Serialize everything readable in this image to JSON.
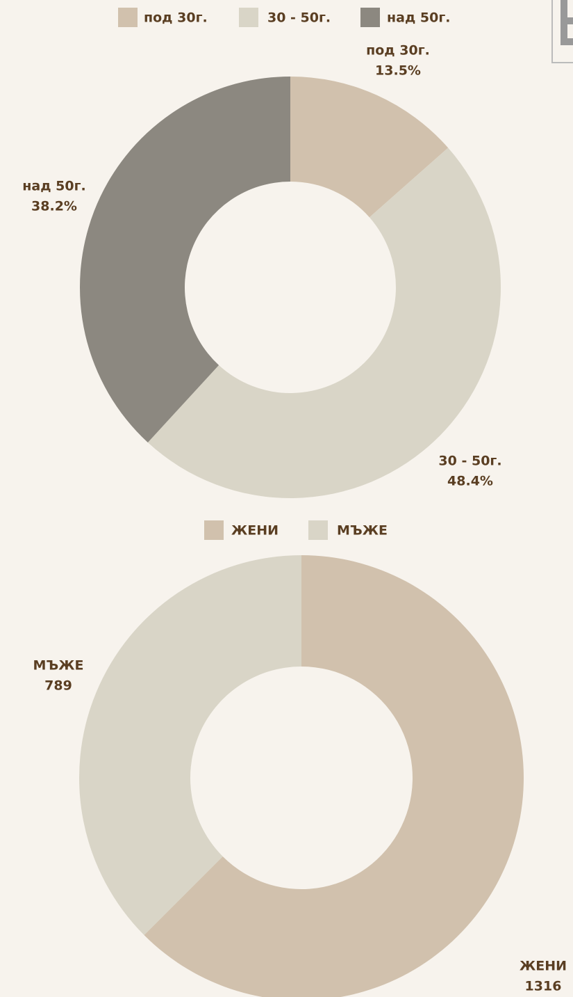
{
  "chart_data": [
    {
      "type": "donut",
      "categories": [
        "под 30г.",
        "30 - 50г.",
        "над 50г."
      ],
      "values": [
        13.5,
        48.4,
        38.2
      ],
      "value_labels": [
        "13.5%",
        "48.4%",
        "38.2%"
      ],
      "colors": [
        "#d1c1ad",
        "#d9d5c7",
        "#8c8880"
      ],
      "legend": "top"
    },
    {
      "type": "donut",
      "categories": [
        "ЖЕНИ",
        "МЪЖЕ"
      ],
      "values": [
        1316,
        789
      ],
      "colors": [
        "#d1c1ad",
        "#d9d5c7"
      ],
      "legend": "top"
    }
  ]
}
